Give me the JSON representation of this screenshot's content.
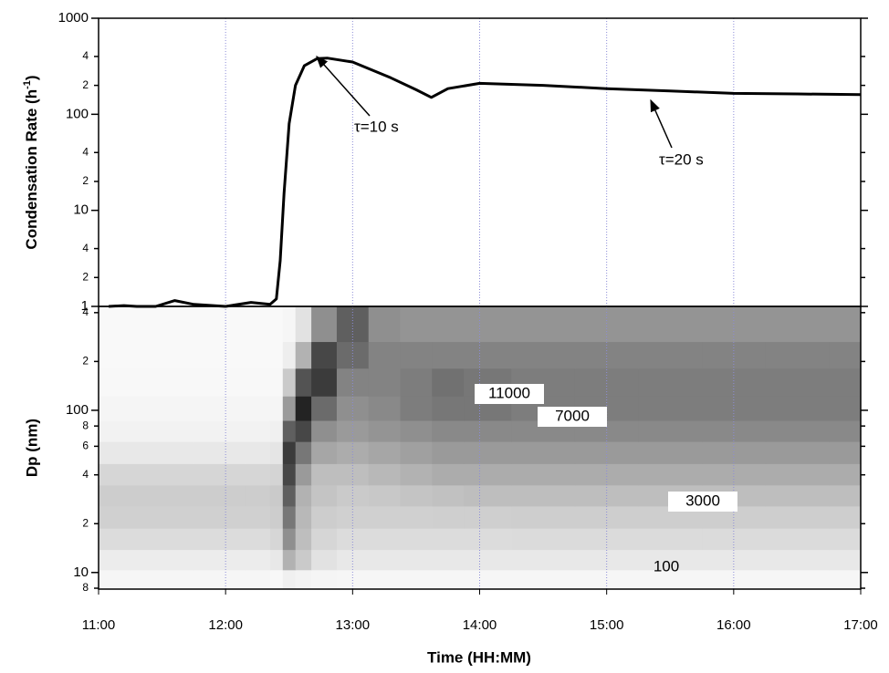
{
  "chart_data": [
    {
      "type": "line",
      "y_label": {
        "text": "Condensation Rate (h",
        "sup": "-1",
        "close": ")"
      },
      "log_y": true,
      "grid": true,
      "grid_color": "#8c8cd8",
      "xlim": [
        11,
        17
      ],
      "xticks": [
        11,
        12,
        13,
        14,
        15,
        16,
        17
      ],
      "ylim": [
        1,
        1000
      ],
      "yticks": [
        1,
        2,
        4,
        10,
        {
          "value": 20,
          "label": "2"
        },
        {
          "value": 40,
          "label": "4"
        },
        100,
        {
          "value": 200,
          "label": "2"
        },
        {
          "value": 400,
          "label": "4"
        },
        1000
      ],
      "x": [
        11.08,
        11.2,
        11.3,
        11.45,
        11.6,
        11.75,
        12.0,
        12.2,
        12.35,
        12.4,
        12.43,
        12.46,
        12.5,
        12.55,
        12.62,
        12.72,
        12.8,
        13.0,
        13.3,
        13.5,
        13.62,
        13.75,
        14.0,
        14.5,
        15.0,
        15.5,
        16.0,
        16.5,
        17.0
      ],
      "series": [
        {
          "color": "#000000",
          "values": [
            1.0,
            1.02,
            1.0,
            1.0,
            1.15,
            1.05,
            1.0,
            1.1,
            1.05,
            1.2,
            3,
            15,
            80,
            200,
            320,
            380,
            385,
            350,
            240,
            180,
            150,
            185,
            210,
            200,
            185,
            175,
            165,
            163,
            160
          ]
        }
      ],
      "annotations": [
        "τ=10 s",
        "τ=20 s"
      ]
    },
    {
      "type": "heatmap",
      "y_label": "Dp (nm)",
      "x_label": "Time (HH:MM)",
      "log_y": true,
      "grid": true,
      "grid_color": "#8c8cd8",
      "xlim": [
        11,
        17
      ],
      "xticks": [
        {
          "value": 11,
          "label": "11:00"
        },
        {
          "value": 12,
          "label": "12:00"
        },
        {
          "value": 13,
          "label": "13:00"
        },
        {
          "value": 14,
          "label": "14:00"
        },
        {
          "value": 15,
          "label": "15:00"
        },
        {
          "value": 16,
          "label": "16:00"
        },
        {
          "value": 17,
          "label": "17:00"
        }
      ],
      "ylim": [
        7.9,
        437
      ],
      "yticks": [
        8,
        10,
        {
          "value": 20,
          "label": "2"
        },
        {
          "value": 40,
          "label": "4"
        },
        {
          "value": 60,
          "label": "6"
        },
        {
          "value": 80,
          "label": "8"
        },
        100,
        {
          "value": 200,
          "label": "2"
        },
        {
          "value": 400,
          "label": "4"
        }
      ],
      "x": [
        11,
        11.5,
        12,
        12.3,
        12.4,
        12.5,
        12.6,
        12.75,
        13,
        13.25,
        13.5,
        13.75,
        14,
        14.5,
        15,
        15.5,
        16,
        16.5,
        17
      ],
      "y": [
        9,
        12,
        16,
        22,
        30,
        40,
        55,
        75,
        100,
        150,
        220,
        320
      ],
      "z": [
        [
          300,
          300,
          300,
          300,
          200,
          800,
          600,
          400,
          300,
          300,
          300,
          300,
          300,
          300,
          300,
          300,
          300,
          300,
          300
        ],
        [
          1200,
          1200,
          1200,
          1200,
          1500,
          6000,
          4000,
          2000,
          1500,
          1500,
          1500,
          1500,
          1500,
          1500,
          1500,
          1500,
          1500,
          1500,
          1500
        ],
        [
          2500,
          2500,
          2500,
          2500,
          3000,
          9000,
          5000,
          3000,
          2500,
          2500,
          2500,
          2500,
          2500,
          2600,
          2600,
          2600,
          2600,
          2600,
          2600
        ],
        [
          3500,
          3500,
          3500,
          3500,
          3800,
          11000,
          5500,
          3800,
          3500,
          3500,
          3500,
          3600,
          3600,
          3700,
          3700,
          3700,
          3700,
          3700,
          3700
        ],
        [
          3800,
          3800,
          3800,
          3800,
          4000,
          13000,
          6000,
          4500,
          4000,
          4200,
          4500,
          4800,
          5000,
          5000,
          5000,
          5000,
          5000,
          5000,
          5000
        ],
        [
          3000,
          3000,
          3000,
          3000,
          3200,
          15000,
          8000,
          5000,
          5000,
          5500,
          6000,
          6500,
          6500,
          6500,
          6500,
          6500,
          6500,
          6500,
          6500
        ],
        [
          1500,
          1500,
          1500,
          1500,
          1800,
          16000,
          11000,
          7000,
          6500,
          7000,
          7500,
          8000,
          8000,
          8000,
          8000,
          8000,
          8000,
          8000,
          8000
        ],
        [
          700,
          700,
          700,
          700,
          800,
          13000,
          15000,
          9000,
          8000,
          8500,
          9000,
          9500,
          9500,
          9500,
          9500,
          9500,
          9500,
          9500,
          9500
        ],
        [
          400,
          400,
          400,
          400,
          400,
          8000,
          18000,
          12000,
          9000,
          9500,
          10500,
          11000,
          11000,
          10500,
          10500,
          10500,
          10500,
          10500,
          10500
        ],
        [
          200,
          200,
          200,
          200,
          200,
          4000,
          14000,
          16000,
          10000,
          10000,
          10500,
          11500,
          11000,
          10500,
          10500,
          10500,
          10500,
          10500,
          10500
        ],
        [
          100,
          100,
          100,
          100,
          100,
          1000,
          6000,
          15000,
          12000,
          10000,
          10000,
          10000,
          10000,
          10000,
          10000,
          10000,
          10000,
          10000,
          10000
        ],
        [
          50,
          50,
          50,
          50,
          50,
          300,
          2000,
          9000,
          13000,
          9000,
          8500,
          8500,
          8500,
          8500,
          8500,
          8500,
          8500,
          8500,
          8500
        ]
      ],
      "contour_levels": [
        11000,
        7000,
        3000,
        100
      ]
    }
  ]
}
